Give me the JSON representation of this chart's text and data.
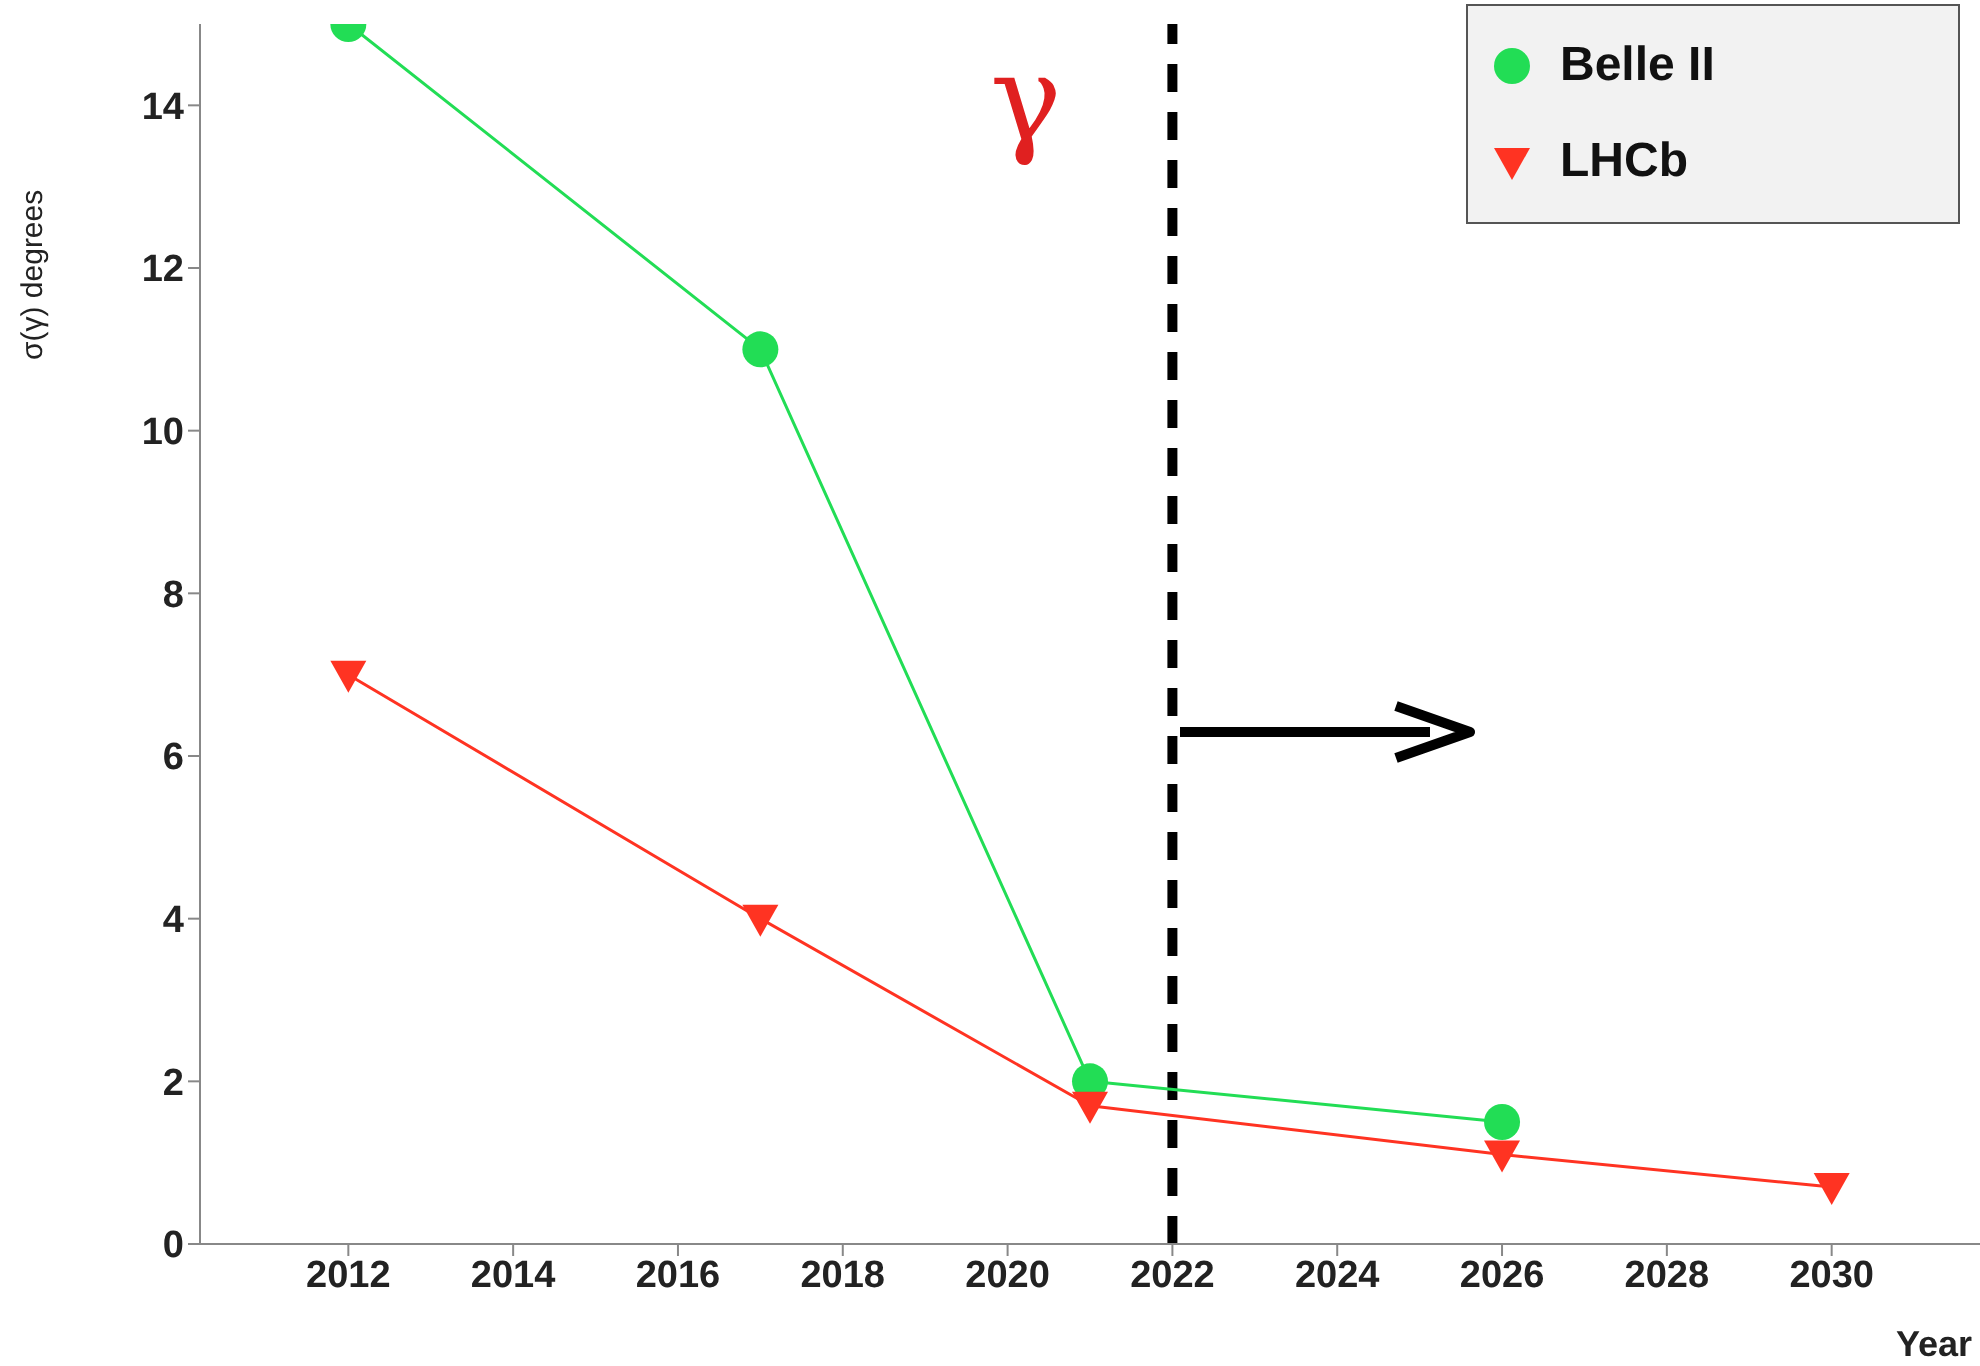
{
  "chart_data": {
    "type": "line",
    "annotations": [
      "γ"
    ],
    "xlabel": "Year",
    "ylabel": "σ(γ) degrees",
    "xlim": [
      2010.2,
      2031.8
    ],
    "xticks": [
      2012,
      2014,
      2016,
      2018,
      2020,
      2022,
      2024,
      2026,
      2028,
      2030
    ],
    "ylim": [
      0,
      15
    ],
    "yticks": [
      0,
      2,
      4,
      6,
      8,
      10,
      12,
      14
    ],
    "legend": "top right",
    "ref_lines": [
      {
        "axis": "x",
        "value": 2022,
        "color": "#000000",
        "line_style": "dashed"
      }
    ],
    "series": [
      {
        "name": "Belle II",
        "color": "#22dd55",
        "marker": "circle",
        "x": [
          2012,
          2017,
          2021,
          2026
        ],
        "values": [
          15,
          11,
          2,
          1.5
        ]
      },
      {
        "name": "LHCb",
        "color": "#ff3322",
        "marker": "triangle",
        "x": [
          2012,
          2017,
          2021,
          2026,
          2030
        ],
        "values": [
          7,
          4,
          1.7,
          1.1,
          0.7
        ]
      }
    ]
  }
}
